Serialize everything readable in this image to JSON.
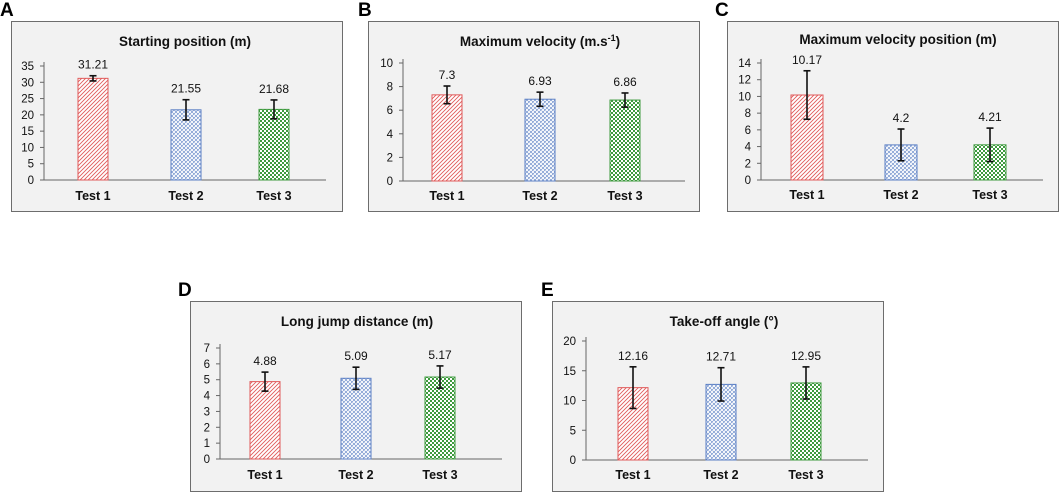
{
  "panels": [
    {
      "letter": "A"
    },
    {
      "letter": "B"
    },
    {
      "letter": "C"
    },
    {
      "letter": "D"
    },
    {
      "letter": "E"
    }
  ],
  "chart_data": [
    {
      "type": "bar",
      "title": "Starting position (m)",
      "title_sup": "",
      "title_tail": "",
      "categories": [
        "Test 1",
        "Test 2",
        "Test 3"
      ],
      "values": [
        31.21,
        21.55,
        21.68
      ],
      "value_labels": [
        "31.21",
        "21.55",
        "21.68"
      ],
      "errors": [
        0.8,
        3.1,
        2.9
      ],
      "ylim": [
        0,
        35
      ],
      "yticks": [
        0,
        5,
        10,
        15,
        20,
        25,
        30,
        35
      ],
      "xlabel": "",
      "ylabel": "",
      "grid": false,
      "colors": [
        "#e05a5a",
        "#5b7fc4",
        "#3e9a3e"
      ],
      "patterns": [
        "diagonal-hatch",
        "cross-hatch",
        "checker"
      ]
    },
    {
      "type": "bar",
      "title": "Maximum velocity (m.s",
      "title_sup": "-1",
      "title_tail": ")",
      "categories": [
        "Test 1",
        "Test 2",
        "Test 3"
      ],
      "values": [
        7.3,
        6.93,
        6.86
      ],
      "value_labels": [
        "7.3",
        "6.93",
        "6.86"
      ],
      "errors": [
        0.75,
        0.6,
        0.6
      ],
      "ylim": [
        0,
        10
      ],
      "yticks": [
        0,
        2,
        4,
        6,
        8,
        10
      ],
      "xlabel": "",
      "ylabel": "",
      "grid": false,
      "colors": [
        "#e05a5a",
        "#5b7fc4",
        "#3e9a3e"
      ],
      "patterns": [
        "diagonal-hatch",
        "cross-hatch",
        "checker"
      ]
    },
    {
      "type": "bar",
      "title": "Maximum velocity position (m)",
      "title_sup": "",
      "title_tail": "",
      "categories": [
        "Test 1",
        "Test 2",
        "Test 3"
      ],
      "values": [
        10.17,
        4.2,
        4.21
      ],
      "value_labels": [
        "10.17",
        "4.2",
        "4.21"
      ],
      "errors": [
        2.9,
        1.9,
        2.0
      ],
      "ylim": [
        0,
        14
      ],
      "yticks": [
        0,
        2,
        4,
        6,
        8,
        10,
        12,
        14
      ],
      "xlabel": "",
      "ylabel": "",
      "grid": false,
      "colors": [
        "#e05a5a",
        "#5b7fc4",
        "#3e9a3e"
      ],
      "patterns": [
        "diagonal-hatch",
        "cross-hatch",
        "checker"
      ]
    },
    {
      "type": "bar",
      "title": "Long jump distance (m)",
      "title_sup": "",
      "title_tail": "",
      "categories": [
        "Test 1",
        "Test 2",
        "Test 3"
      ],
      "values": [
        4.88,
        5.09,
        5.17
      ],
      "value_labels": [
        "4.88",
        "5.09",
        "5.17"
      ],
      "errors": [
        0.6,
        0.7,
        0.7
      ],
      "ylim": [
        0,
        7
      ],
      "yticks": [
        0,
        1,
        2,
        3,
        4,
        5,
        6,
        7
      ],
      "xlabel": "",
      "ylabel": "",
      "grid": false,
      "colors": [
        "#e05a5a",
        "#5b7fc4",
        "#3e9a3e"
      ],
      "patterns": [
        "diagonal-hatch",
        "cross-hatch",
        "checker"
      ]
    },
    {
      "type": "bar",
      "title": "Take-off angle (°)",
      "title_sup": "",
      "title_tail": "",
      "categories": [
        "Test 1",
        "Test 2",
        "Test 3"
      ],
      "values": [
        12.16,
        12.71,
        12.95
      ],
      "value_labels": [
        "12.16",
        "12.71",
        "12.95"
      ],
      "errors": [
        3.5,
        2.8,
        2.7
      ],
      "ylim": [
        0,
        20
      ],
      "yticks": [
        0,
        5,
        10,
        15,
        20
      ],
      "xlabel": "",
      "ylabel": "",
      "grid": false,
      "colors": [
        "#e05a5a",
        "#5b7fc4",
        "#3e9a3e"
      ],
      "patterns": [
        "diagonal-hatch",
        "cross-hatch",
        "checker"
      ]
    }
  ]
}
